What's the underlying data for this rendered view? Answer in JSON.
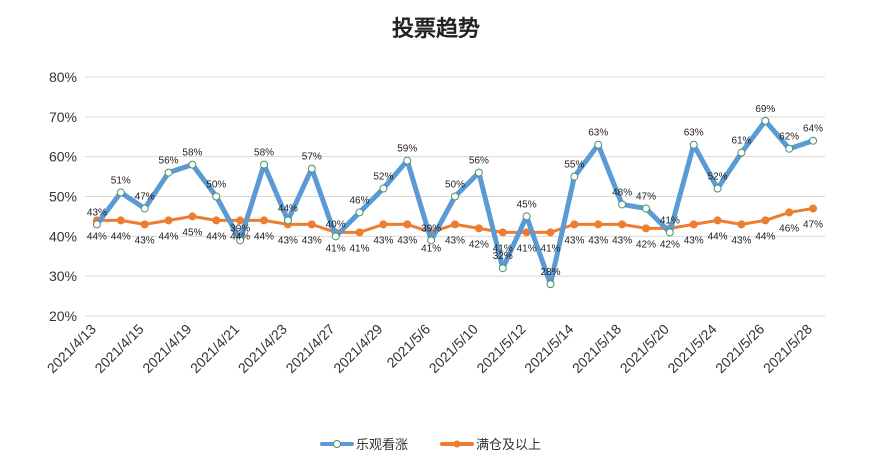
{
  "chart_data": {
    "type": "line",
    "title": "投票趋势",
    "xlabel": "",
    "ylabel": "",
    "ylim": [
      20,
      80
    ],
    "yticks": [
      "20%",
      "30%",
      "40%",
      "50%",
      "60%",
      "70%",
      "80%"
    ],
    "grid": true,
    "legend_position": "bottom",
    "x_tick_labels": [
      "2021/4/13",
      "2021/4/15",
      "2021/4/19",
      "2021/4/21",
      "2021/4/23",
      "2021/4/27",
      "2021/4/29",
      "2021/5/6",
      "2021/5/10",
      "2021/5/12",
      "2021/5/14",
      "2021/5/18",
      "2021/5/20",
      "2021/5/24",
      "2021/5/26",
      "2021/5/28"
    ],
    "series": [
      {
        "name": "乐观看涨",
        "color": "#5B9BD5",
        "marker": "circle-hollow",
        "values": [
          43,
          51,
          47,
          56,
          58,
          50,
          39,
          58,
          44,
          57,
          40,
          46,
          52,
          59,
          39,
          50,
          56,
          32,
          45,
          28,
          55,
          63,
          48,
          47,
          41,
          63,
          52,
          61,
          69,
          62,
          64
        ],
        "labels": [
          "43%",
          "51%",
          "47%",
          "56%",
          "58%",
          "50%",
          "39%",
          "58%",
          "44%",
          "57%",
          "40%",
          "46%",
          "52%",
          "59%",
          "39%",
          "50%",
          "56%",
          "32%",
          "45%",
          "28%",
          "55%",
          "63%",
          "48%",
          "47%",
          "41%",
          "63%",
          "52%",
          "61%",
          "69%",
          "62%",
          "64%"
        ]
      },
      {
        "name": "满仓及以上",
        "color": "#ED7D31",
        "marker": "circle-filled",
        "values": [
          44,
          44,
          43,
          44,
          45,
          44,
          44,
          44,
          43,
          43,
          41,
          41,
          43,
          43,
          41,
          43,
          42,
          41,
          41,
          41,
          43,
          43,
          43,
          42,
          42,
          43,
          44,
          43,
          44,
          46,
          47
        ],
        "labels": [
          "44%",
          "44%",
          "43%",
          "44%",
          "45%",
          "44%",
          "44%",
          "44%",
          "43%",
          "43%",
          "41%",
          "41%",
          "43%",
          "43%",
          "41%",
          "43%",
          "42%",
          "41%",
          "41%",
          "41%",
          "43%",
          "43%",
          "43%",
          "42%",
          "42%",
          "43%",
          "44%",
          "43%",
          "44%",
          "46%",
          "47%"
        ]
      }
    ]
  }
}
